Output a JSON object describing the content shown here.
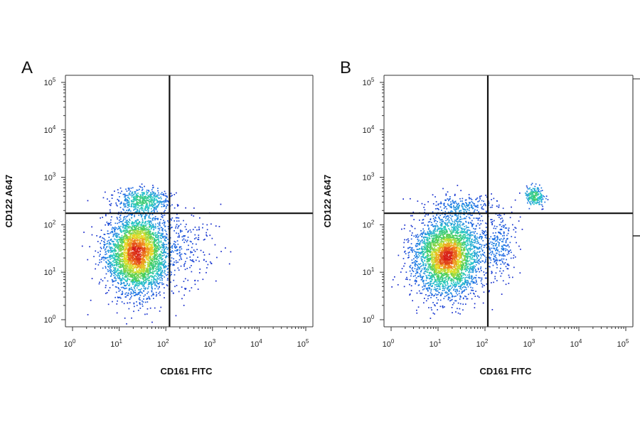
{
  "chart_data": [
    {
      "type": "scatter",
      "panel_label": "A",
      "title": "",
      "xlabel": "CD161 FITC",
      "ylabel": "CD122 A647",
      "x_scale": "log",
      "y_scale": "log",
      "xlim": [
        1,
        100000
      ],
      "ylim": [
        1,
        100000
      ],
      "x_ticks": [
        1,
        10,
        100,
        1000,
        10000,
        100000
      ],
      "y_ticks": [
        1,
        10,
        100,
        1000,
        10000,
        100000
      ],
      "tick_labels": {
        "base": "10",
        "exponents": [
          "0",
          "1",
          "2",
          "3",
          "4",
          "5"
        ]
      },
      "quadrant_gate": {
        "x": 120,
        "y": 175
      },
      "color_scale": "density (blue → green → yellow → red)",
      "populations": [
        {
          "center_x": 25,
          "center_y": 25,
          "spread_log_x": 0.34,
          "spread_log_y": 0.42,
          "share": 0.84
        },
        {
          "center_x": 32,
          "center_y": 330,
          "spread_log_x": 0.28,
          "spread_log_y": 0.12,
          "share": 0.11
        },
        {
          "center_x": 250,
          "center_y": 40,
          "spread_log_x": 0.4,
          "spread_log_y": 0.4,
          "share": 0.05
        }
      ]
    },
    {
      "type": "scatter",
      "panel_label": "B",
      "title": "",
      "xlabel": "CD161 FITC",
      "ylabel": "CD122 A647",
      "x_scale": "log",
      "y_scale": "log",
      "xlim": [
        1,
        100000
      ],
      "ylim": [
        1,
        100000
      ],
      "x_ticks": [
        1,
        10,
        100,
        1000,
        10000,
        100000
      ],
      "y_ticks": [
        1,
        10,
        100,
        1000,
        10000,
        100000
      ],
      "tick_labels": {
        "base": "10",
        "exponents": [
          "0",
          "1",
          "2",
          "3",
          "4",
          "5"
        ]
      },
      "quadrant_gate": {
        "x": 115,
        "y": 175
      },
      "color_scale": "density (blue → green → yellow → red)",
      "populations": [
        {
          "center_x": 16,
          "center_y": 22,
          "spread_log_x": 0.36,
          "spread_log_y": 0.42,
          "share": 0.84
        },
        {
          "center_x": 1150,
          "center_y": 400,
          "spread_log_x": 0.1,
          "spread_log_y": 0.1,
          "share": 0.05
        },
        {
          "center_x": 210,
          "center_y": 40,
          "spread_log_x": 0.18,
          "spread_log_y": 0.35,
          "share": 0.06
        },
        {
          "center_x": 40,
          "center_y": 250,
          "spread_log_x": 0.3,
          "spread_log_y": 0.12,
          "share": 0.05
        }
      ]
    }
  ]
}
